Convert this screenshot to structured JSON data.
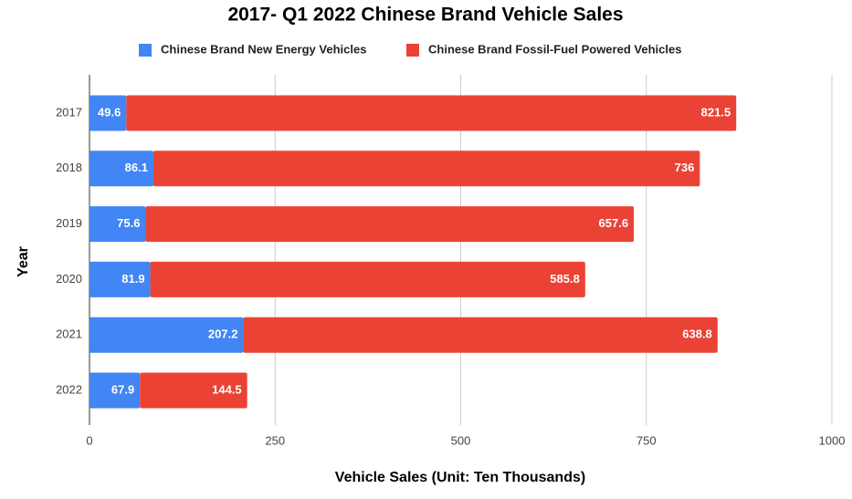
{
  "chart_data": {
    "type": "stacked-bar-horizontal",
    "title": "2017- Q1 2022 Chinese Brand Vehicle Sales",
    "x_label": "Vehicle Sales (Unit: Ten Thousands)",
    "y_label": "Year",
    "categories": [
      "2017",
      "2018",
      "2019",
      "2020",
      "2021",
      "2022"
    ],
    "series": [
      {
        "name": "Chinese Brand New Energy Vehicles",
        "color": "#4285f4",
        "values": [
          49.6,
          86.1,
          75.6,
          81.9,
          207.2,
          67.9
        ]
      },
      {
        "name": "Chinese Brand Fossil-Fuel Powered Vehicles",
        "color": "#ea4335",
        "values": [
          821.5,
          736,
          657.6,
          585.8,
          638.8,
          144.5
        ]
      }
    ],
    "xlim": [
      0,
      1000
    ],
    "xticks": [
      0,
      250,
      500,
      750,
      1000
    ],
    "grid": true,
    "legend": "top"
  }
}
